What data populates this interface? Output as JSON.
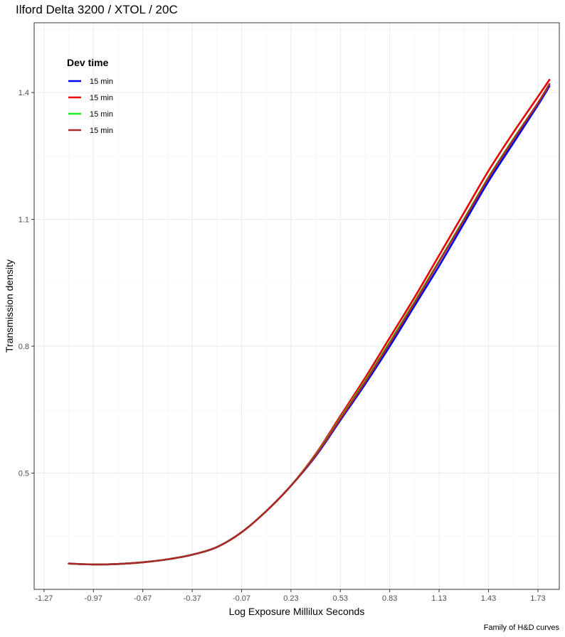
{
  "chart_data": {
    "type": "line",
    "title": "Ilford Delta 3200 / XTOL / 20C",
    "xlabel": "Log Exposure Millilux Seconds",
    "ylabel": "Transmission density",
    "caption": "Family of H&D curves",
    "xlim": [
      -1.33,
      1.86
    ],
    "ylim": [
      0.225,
      1.565
    ],
    "x_ticks": [
      -1.27,
      -0.97,
      -0.67,
      -0.37,
      -0.07,
      0.23,
      0.53,
      0.83,
      1.13,
      1.43,
      1.73
    ],
    "x_tick_labels": [
      "-1.27",
      "-0.97",
      "-0.67",
      "-0.37",
      "-0.07",
      "0.23",
      "0.53",
      "0.83",
      "1.13",
      "1.43",
      "1.73"
    ],
    "y_ticks": [
      0.5,
      0.8,
      1.1,
      1.4
    ],
    "y_tick_labels": [
      "0.5",
      "0.8",
      "1.1",
      "1.4"
    ],
    "grid": true,
    "legend": {
      "title": "Dev time",
      "position": "top-left"
    },
    "series": [
      {
        "name": "15 min",
        "color": "#0000ee",
        "x": [
          -1.12,
          -0.97,
          -0.82,
          -0.67,
          -0.52,
          -0.37,
          -0.22,
          -0.07,
          0.08,
          0.23,
          0.38,
          0.53,
          0.68,
          0.83,
          0.98,
          1.13,
          1.28,
          1.43,
          1.58,
          1.73,
          1.8
        ],
        "y": [
          0.286,
          0.284,
          0.285,
          0.289,
          0.296,
          0.307,
          0.325,
          0.36,
          0.41,
          0.47,
          0.54,
          0.625,
          0.71,
          0.8,
          0.895,
          0.99,
          1.09,
          1.19,
          1.28,
          1.37,
          1.415
        ]
      },
      {
        "name": "15 min",
        "color": "#ee0000",
        "x": [
          -1.12,
          -0.97,
          -0.82,
          -0.67,
          -0.52,
          -0.37,
          -0.22,
          -0.07,
          0.08,
          0.23,
          0.38,
          0.53,
          0.68,
          0.83,
          0.98,
          1.13,
          1.28,
          1.43,
          1.58,
          1.73,
          1.8
        ],
        "y": [
          0.286,
          0.284,
          0.285,
          0.289,
          0.296,
          0.307,
          0.325,
          0.36,
          0.41,
          0.47,
          0.545,
          0.635,
          0.725,
          0.82,
          0.915,
          1.015,
          1.115,
          1.215,
          1.305,
          1.39,
          1.43
        ]
      },
      {
        "name": "15 min",
        "color": "#22ee22",
        "x": [
          -1.12,
          -0.97,
          -0.82,
          -0.67,
          -0.52,
          -0.37,
          -0.22,
          -0.07,
          0.08,
          0.23,
          0.38,
          0.53,
          0.68,
          0.83,
          0.98,
          1.13,
          1.28,
          1.43,
          1.58,
          1.73,
          1.8
        ],
        "y": [
          0.286,
          0.284,
          0.285,
          0.289,
          0.296,
          0.307,
          0.325,
          0.36,
          0.41,
          0.47,
          0.543,
          0.63,
          0.718,
          0.81,
          0.905,
          1.002,
          1.1,
          1.2,
          1.29,
          1.375,
          1.42
        ]
      },
      {
        "name": "15 min",
        "color": "#aa2a2a",
        "x": [
          -1.12,
          -0.97,
          -0.82,
          -0.67,
          -0.52,
          -0.37,
          -0.22,
          -0.07,
          0.08,
          0.23,
          0.38,
          0.53,
          0.68,
          0.83,
          0.98,
          1.13,
          1.28,
          1.43,
          1.58,
          1.73,
          1.8
        ],
        "y": [
          0.286,
          0.284,
          0.285,
          0.289,
          0.296,
          0.307,
          0.325,
          0.36,
          0.41,
          0.47,
          0.542,
          0.628,
          0.715,
          0.807,
          0.902,
          1.0,
          1.098,
          1.198,
          1.288,
          1.375,
          1.42
        ]
      }
    ]
  }
}
